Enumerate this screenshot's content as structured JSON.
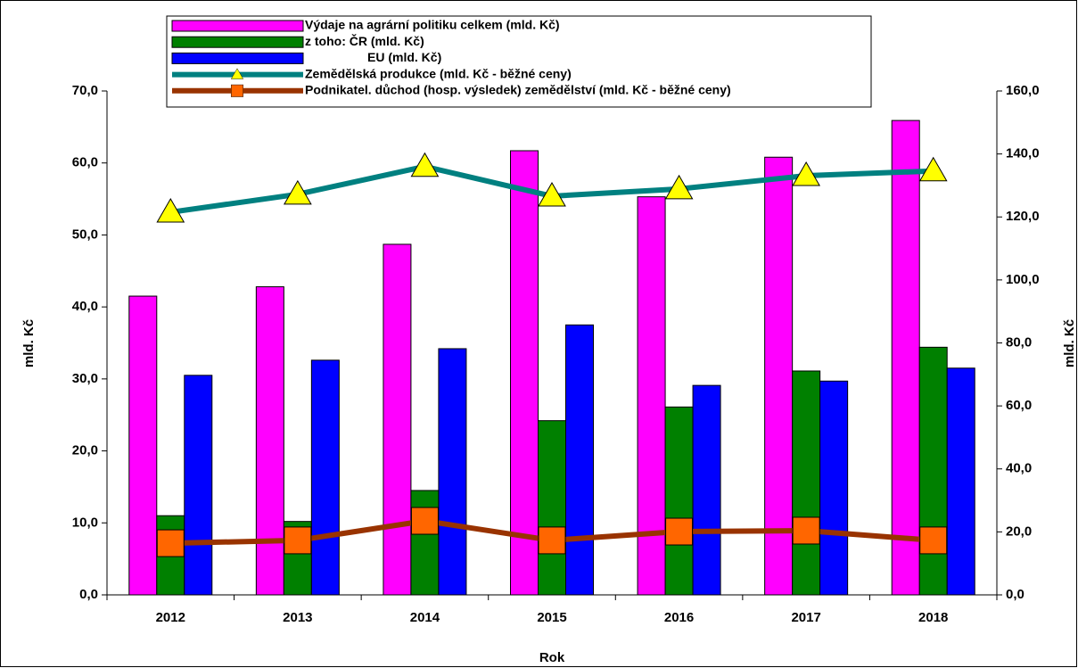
{
  "chart_data": {
    "type": "bar",
    "x_label": "Rok",
    "y_label": "mld. Kč",
    "y2_label": "mld. Kč",
    "categories": [
      "2012",
      "2013",
      "2014",
      "2015",
      "2016",
      "2017",
      "2018"
    ],
    "series": [
      {
        "name": "Výdaje na agrární politiku celkem (mld. Kč)",
        "color": "#ff00ff",
        "values": [
          41.5,
          42.8,
          48.7,
          61.7,
          55.3,
          60.8,
          65.9
        ]
      },
      {
        "name": "z toho: ČR (mld. Kč)",
        "color": "#008000",
        "values": [
          11.0,
          10.2,
          14.5,
          24.2,
          26.1,
          31.1,
          34.4
        ]
      },
      {
        "name": "EU (mld. Kč)",
        "color": "#0000ff",
        "values": [
          30.5,
          32.6,
          34.2,
          37.5,
          29.1,
          29.7,
          31.5
        ]
      },
      {
        "name": "Zemědělská produkce (mld. Kč - běžné ceny)",
        "color": "#008080",
        "marker": "triangle",
        "marker_color": "#ffff00",
        "axis": "y2",
        "values": [
          121.5,
          127.2,
          136.0,
          126.6,
          128.9,
          133.1,
          134.6
        ]
      },
      {
        "name": "Podnikatel. důchod (hosp. výsledek) zemědělství (mld. Kč - běžné ceny)",
        "color": "#993300",
        "marker": "square",
        "marker_color": "#ff6600",
        "axis": "y2",
        "values": [
          16.4,
          17.3,
          23.5,
          17.3,
          20.1,
          20.4,
          17.3
        ]
      }
    ],
    "ylim": [
      0,
      70
    ],
    "yticks": [
      {
        "value": 0,
        "label": "0,0"
      },
      {
        "value": 10,
        "label": "10,0"
      },
      {
        "value": 20,
        "label": "20,0"
      },
      {
        "value": 30,
        "label": "30,0"
      },
      {
        "value": 40,
        "label": "40,0"
      },
      {
        "value": 50,
        "label": "50,0"
      },
      {
        "value": 60,
        "label": "60,0"
      },
      {
        "value": 70,
        "label": "70,0"
      }
    ],
    "y2lim": [
      0,
      160
    ],
    "y2ticks": [
      {
        "value": 0,
        "label": "0,0"
      },
      {
        "value": 20,
        "label": "20,0"
      },
      {
        "value": 40,
        "label": "40,0"
      },
      {
        "value": 60,
        "label": "60,0"
      },
      {
        "value": 80,
        "label": "80,0"
      },
      {
        "value": 100,
        "label": "100,0"
      },
      {
        "value": 120,
        "label": "120,0"
      },
      {
        "value": 140,
        "label": "140,0"
      },
      {
        "value": 160,
        "label": "160,0"
      }
    ],
    "legend": "top"
  }
}
